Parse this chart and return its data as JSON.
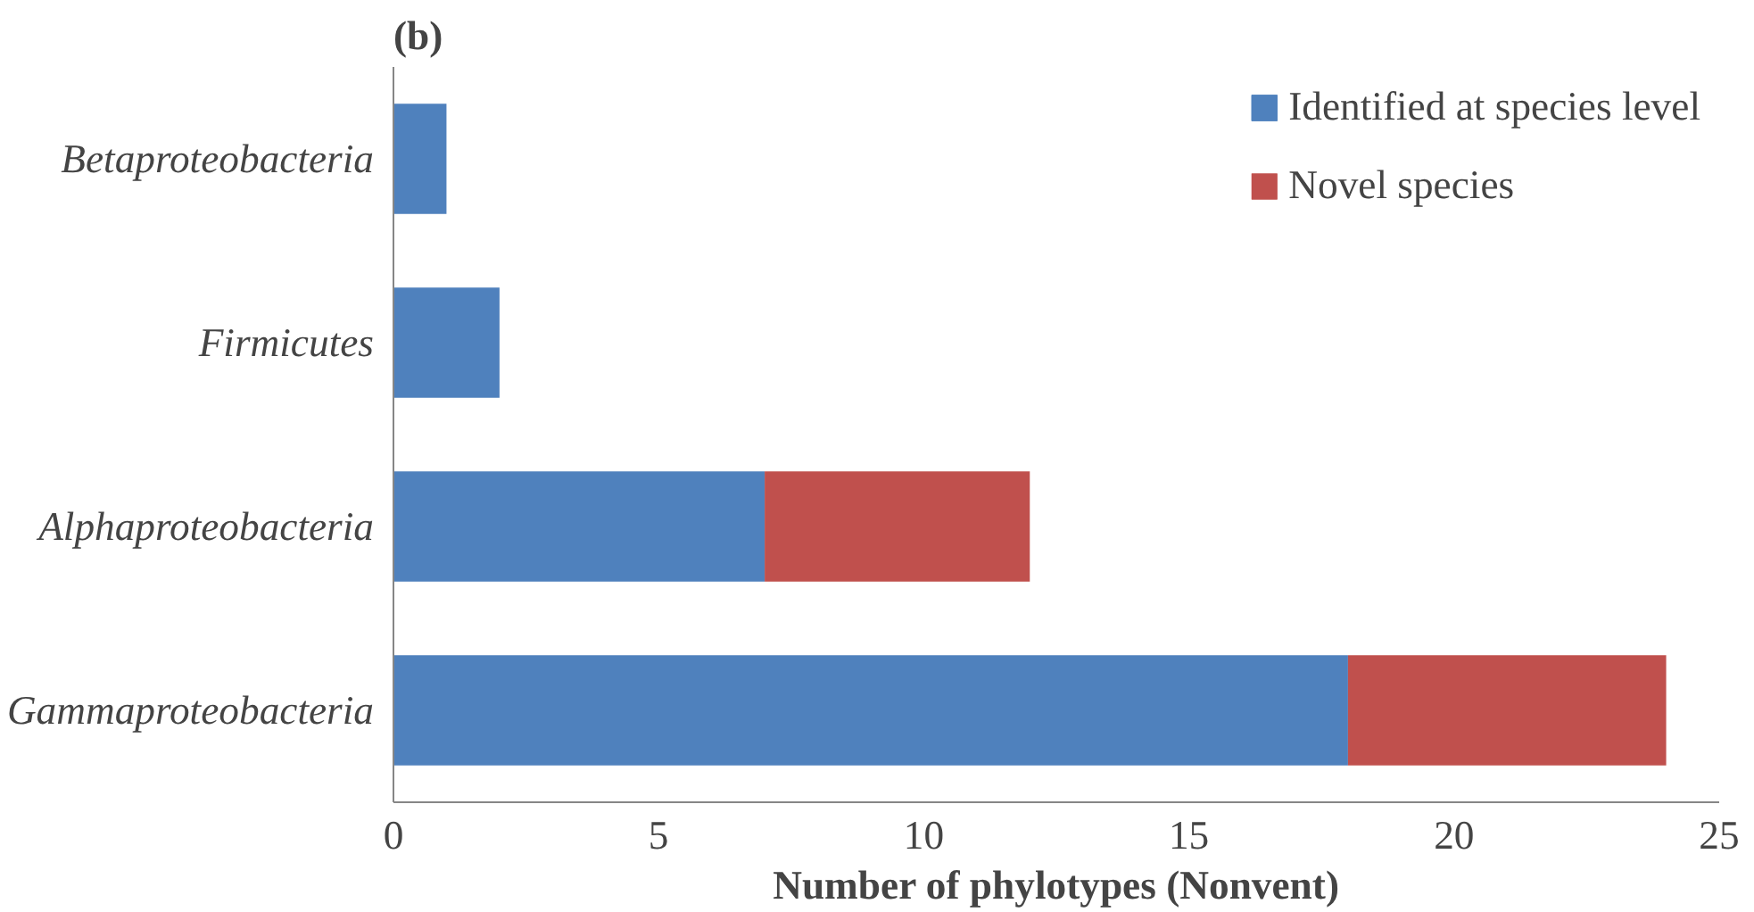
{
  "chart_data": {
    "type": "bar",
    "orientation": "horizontal",
    "stacked": true,
    "title": "(b)",
    "xlabel": "Number of phylotypes (Nonvent)",
    "categories": [
      "Betaproteobacteria",
      "Firmicutes",
      "Alphaproteobacteria",
      "Gammaproteobacteria"
    ],
    "series": [
      {
        "name": "Identified at species level",
        "color": "#4f81bd",
        "values": [
          1,
          2,
          7,
          18
        ]
      },
      {
        "name": "Novel species",
        "color": "#c0504d",
        "values": [
          null,
          null,
          5,
          6
        ]
      }
    ],
    "xlim": [
      0,
      25
    ],
    "xticks": [
      0,
      5,
      10,
      15,
      20,
      25
    ],
    "grid": false,
    "legend": "top right"
  }
}
